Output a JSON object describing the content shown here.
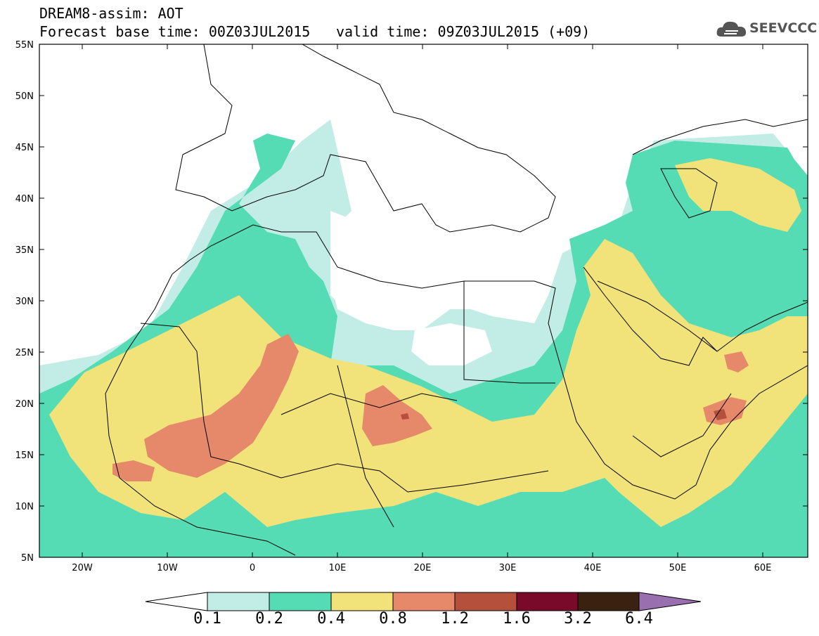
{
  "header": {
    "title": "DREAM8-assim: AOT",
    "base_time": "Forecast base time: 00Z03JUL2015",
    "valid_time": "valid time: 09Z03JUL2015 (+09)"
  },
  "logo": {
    "text": "SEEVCCC",
    "icon": "cloud-icon"
  },
  "map": {
    "lat_labels": [
      "55N",
      "50N",
      "45N",
      "40N",
      "35N",
      "30N",
      "25N",
      "20N",
      "15N",
      "10N",
      "5N"
    ],
    "lon_labels": [
      "20W",
      "10W",
      "0",
      "10E",
      "20E",
      "30E",
      "40E",
      "50E",
      "60E"
    ],
    "background": "#ffffff",
    "coastline_color": "#000000"
  },
  "colorbar": {
    "labels": [
      "0.1",
      "0.2",
      "0.4",
      "0.8",
      "1.2",
      "1.6",
      "3.2",
      "6.4"
    ],
    "colors": [
      "#ffffff",
      "#c2ede6",
      "#55dcb4",
      "#f2e27a",
      "#e6896b",
      "#b4503c",
      "#7a0a2a",
      "#3b2110",
      "#9a6fb0"
    ]
  }
}
